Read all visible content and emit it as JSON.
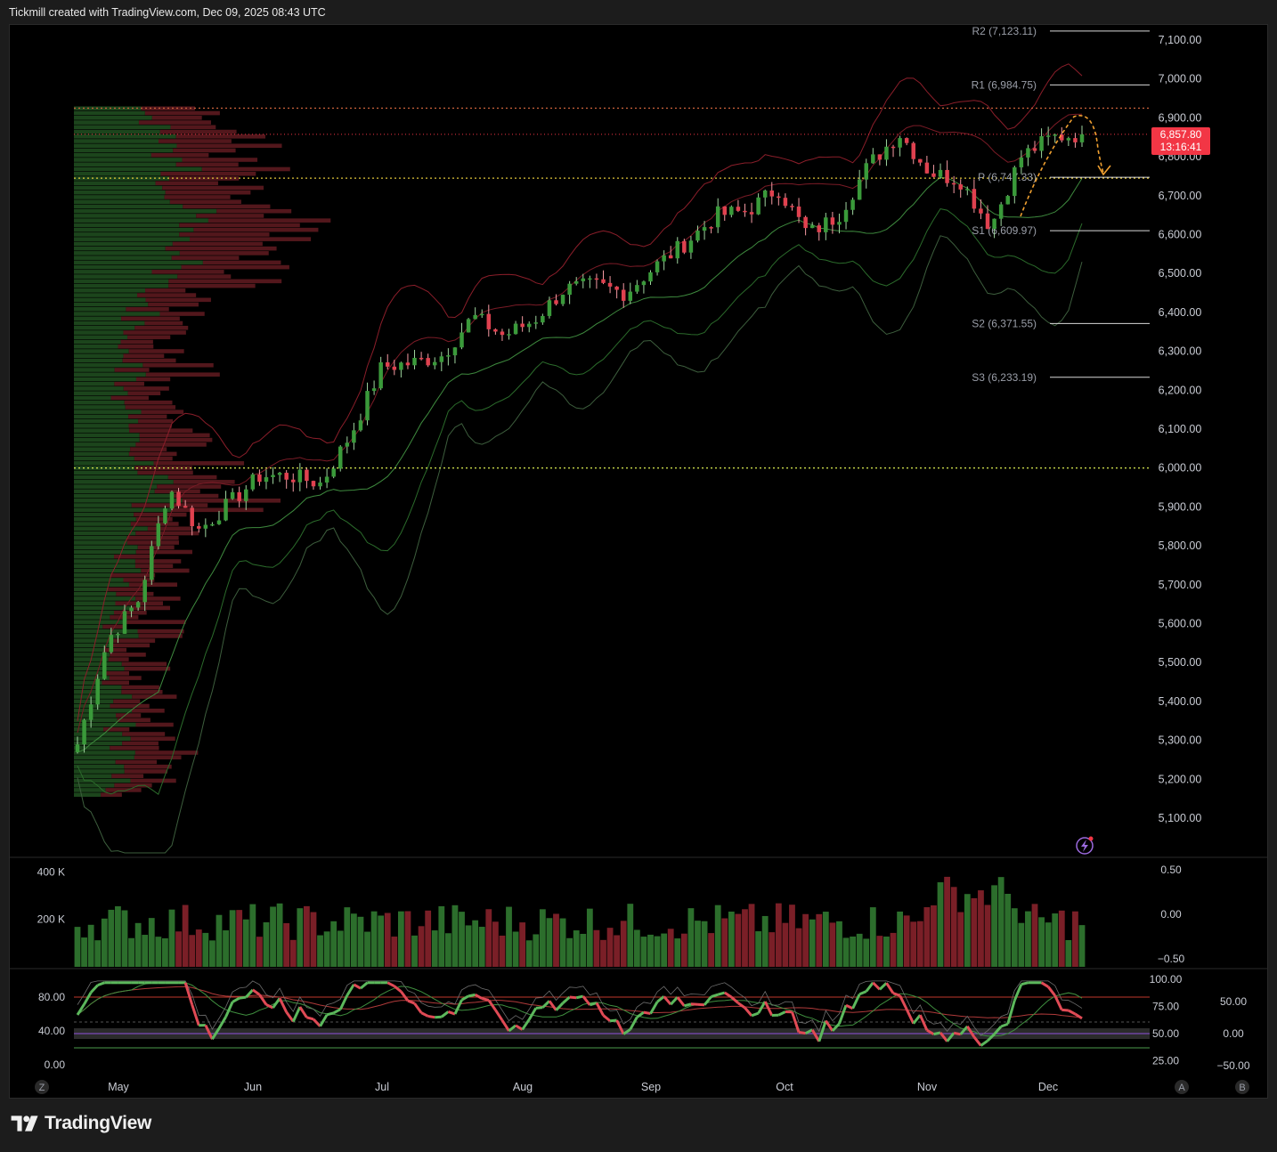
{
  "header": {
    "caption": "Tickmill created with TradingView.com, Dec 09, 2025 08:43 UTC"
  },
  "brand": {
    "name": "TradingView"
  },
  "colors": {
    "up": "#3a9a3a",
    "down": "#e0414f",
    "background": "#000000",
    "label_red": "#f23645"
  },
  "price_axis": {
    "ticks": [
      "7,100.00",
      "7,000.00",
      "6,900.00",
      "6,800.00",
      "6,700.00",
      "6,600.00",
      "6,500.00",
      "6,400.00",
      "6,300.00",
      "6,200.00",
      "6,100.00",
      "6,000.00",
      "5,900.00",
      "5,800.00",
      "5,700.00",
      "5,600.00",
      "5,500.00",
      "5,400.00",
      "5,300.00",
      "5,200.00",
      "5,100.00"
    ],
    "current_price": "6,857.80",
    "countdown": "13:16:41"
  },
  "pivots": [
    {
      "label": "R2 (7,123.11)",
      "value": 7123.11
    },
    {
      "label": "R1 (6,984.75)",
      "value": 6984.75
    },
    {
      "label": "P (6,747.33)",
      "value": 6747.33
    },
    {
      "label": "S1 (6,609.97)",
      "value": 6609.97
    },
    {
      "label": "S2 (6,371.55)",
      "value": 6371.55
    },
    {
      "label": "S3 (6,233.19)",
      "value": 6233.19
    }
  ],
  "reference_levels": [
    6925,
    6745,
    6000
  ],
  "volume_axis": {
    "left_ticks": [
      "400 K",
      "200 K"
    ],
    "right_ticks": [
      "0.50",
      "0.00",
      "−0.50"
    ]
  },
  "oscillator_axis": {
    "left_ticks": [
      "80.00",
      "40.00",
      "0.00"
    ],
    "mid_ticks": [
      "100.00",
      "75.00",
      "50.00",
      "25.00"
    ],
    "right_ticks": [
      "50.00",
      "0.00",
      "−50.00"
    ]
  },
  "time_axis": {
    "months": [
      "May",
      "Jun",
      "Jul",
      "Aug",
      "Sep",
      "Oct",
      "Nov",
      "Dec"
    ],
    "corner_left": "Z",
    "corner_right_a": "A",
    "corner_right_b": "B"
  },
  "chart_data": {
    "type": "candlestick",
    "title": "",
    "x": [
      "Apr 22",
      "Apr 29",
      "May 06",
      "May 13",
      "May 20",
      "May 27",
      "Jun 03",
      "Jun 10",
      "Jun 17",
      "Jun 24",
      "Jul 01",
      "Jul 08",
      "Jul 15",
      "Jul 22",
      "Jul 29",
      "Aug 05",
      "Aug 12",
      "Aug 19",
      "Aug 26",
      "Sep 02",
      "Sep 09",
      "Sep 16",
      "Sep 23",
      "Sep 30",
      "Oct 07",
      "Oct 14",
      "Oct 21",
      "Oct 28",
      "Nov 04",
      "Nov 11",
      "Nov 18",
      "Nov 25",
      "Dec 02",
      "Dec 08"
    ],
    "close": [
      5290,
      5560,
      5660,
      5950,
      5840,
      5910,
      5980,
      5980,
      5960,
      6090,
      6260,
      6270,
      6290,
      6390,
      6340,
      6380,
      6460,
      6470,
      6450,
      6520,
      6580,
      6650,
      6660,
      6720,
      6600,
      6650,
      6780,
      6860,
      6760,
      6740,
      6620,
      6800,
      6850,
      6857.8
    ],
    "ylim": [
      5000,
      7150
    ]
  }
}
